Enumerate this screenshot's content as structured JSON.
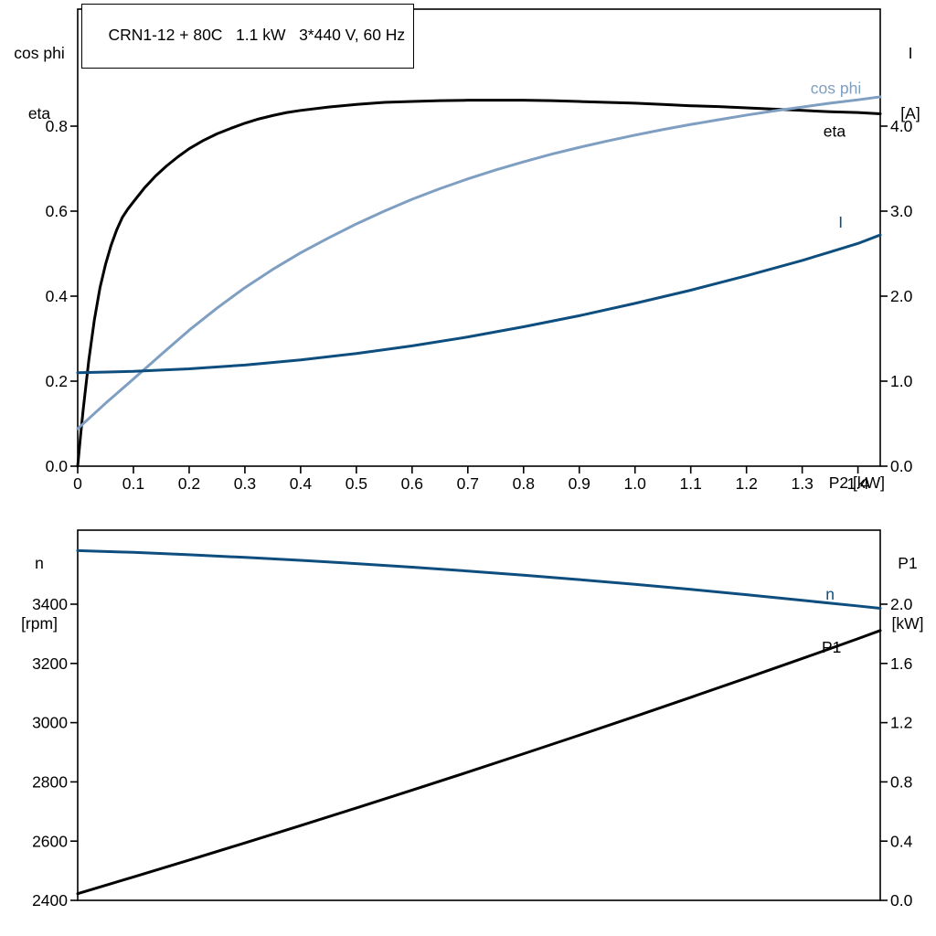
{
  "header": {
    "title": "CRN1-12 + 80C   1.1 kW   3*440 V, 60 Hz"
  },
  "colors": {
    "black": "#000000",
    "dark_blue": "#0e4e7e",
    "light_blue": "#7f9fc2",
    "frame": "#000000",
    "background": "#ffffff"
  },
  "axis_labels": {
    "top_left_line1": "cos phi",
    "top_left_line2": "eta",
    "top_right_line1": "I",
    "top_right_line2": "[A]",
    "bottom_left_line1": "n",
    "bottom_left_line2": "[rpm]",
    "bottom_right_line1": "P1",
    "bottom_right_line2": "[kW]"
  },
  "chart_data": [
    {
      "type": "line",
      "title": "CRN1-12 + 80C   1.1 kW   3*440 V, 60 Hz",
      "xlabel": "P2 [kW]",
      "xlim": [
        0,
        1.44
      ],
      "x_ticks": [
        0,
        0.1,
        0.2,
        0.3,
        0.4,
        0.5,
        0.6,
        0.7,
        0.8,
        0.9,
        1.0,
        1.1,
        1.2,
        1.3,
        1.4
      ],
      "x_tick_labels": [
        "0",
        "0.1",
        "0.2",
        "0.3",
        "0.4",
        "0.5",
        "0.6",
        "0.7",
        "0.8",
        "0.9",
        "1.0",
        "1.1",
        "1.2",
        "1.3",
        "1.4"
      ],
      "left_axis": {
        "name": "cos phi / eta",
        "lim": [
          0,
          1.0753
        ],
        "ticks": [
          0,
          0.2,
          0.4,
          0.6,
          0.8
        ],
        "tick_labels": [
          "0.0",
          "0.2",
          "0.4",
          "0.6",
          "0.8"
        ]
      },
      "right_axis": {
        "name": "I [A]",
        "lim": [
          0,
          5.3763
        ],
        "ticks": [
          0,
          1,
          2,
          3,
          4
        ],
        "tick_labels": [
          "0.0",
          "1.0",
          "2.0",
          "3.0",
          "4.0"
        ]
      },
      "series": [
        {
          "name": "eta",
          "axis": "left",
          "color": "black",
          "points": [
            [
              0,
              0
            ],
            [
              0.005,
              0.07
            ],
            [
              0.01,
              0.135
            ],
            [
              0.02,
              0.25
            ],
            [
              0.03,
              0.345
            ],
            [
              0.04,
              0.42
            ],
            [
              0.05,
              0.475
            ],
            [
              0.06,
              0.52
            ],
            [
              0.07,
              0.556
            ],
            [
              0.08,
              0.585
            ],
            [
              0.09,
              0.605
            ],
            [
              0.1,
              0.622
            ],
            [
              0.12,
              0.655
            ],
            [
              0.14,
              0.683
            ],
            [
              0.16,
              0.707
            ],
            [
              0.18,
              0.728
            ],
            [
              0.2,
              0.747
            ],
            [
              0.225,
              0.766
            ],
            [
              0.25,
              0.782
            ],
            [
              0.275,
              0.795
            ],
            [
              0.3,
              0.807
            ],
            [
              0.325,
              0.817
            ],
            [
              0.35,
              0.825
            ],
            [
              0.375,
              0.832
            ],
            [
              0.4,
              0.837
            ],
            [
              0.45,
              0.845
            ],
            [
              0.5,
              0.851
            ],
            [
              0.55,
              0.856
            ],
            [
              0.6,
              0.858
            ],
            [
              0.65,
              0.86
            ],
            [
              0.7,
              0.861
            ],
            [
              0.75,
              0.861
            ],
            [
              0.8,
              0.861
            ],
            [
              0.85,
              0.86
            ],
            [
              0.9,
              0.858
            ],
            [
              0.95,
              0.856
            ],
            [
              1,
              0.854
            ],
            [
              1.05,
              0.851
            ],
            [
              1.1,
              0.848
            ],
            [
              1.15,
              0.846
            ],
            [
              1.2,
              0.843
            ],
            [
              1.25,
              0.84
            ],
            [
              1.3,
              0.837
            ],
            [
              1.35,
              0.834
            ],
            [
              1.4,
              0.832
            ],
            [
              1.44,
              0.829
            ]
          ]
        },
        {
          "name": "cos phi",
          "axis": "left",
          "color": "light_blue",
          "points": [
            [
              0,
              0.088
            ],
            [
              0.05,
              0.148
            ],
            [
              0.1,
              0.205
            ],
            [
              0.15,
              0.263
            ],
            [
              0.2,
              0.32
            ],
            [
              0.25,
              0.372
            ],
            [
              0.3,
              0.42
            ],
            [
              0.35,
              0.463
            ],
            [
              0.4,
              0.502
            ],
            [
              0.45,
              0.537
            ],
            [
              0.5,
              0.57
            ],
            [
              0.55,
              0.6
            ],
            [
              0.6,
              0.628
            ],
            [
              0.65,
              0.653
            ],
            [
              0.7,
              0.676
            ],
            [
              0.75,
              0.697
            ],
            [
              0.8,
              0.716
            ],
            [
              0.85,
              0.734
            ],
            [
              0.9,
              0.75
            ],
            [
              0.95,
              0.765
            ],
            [
              1,
              0.779
            ],
            [
              1.05,
              0.792
            ],
            [
              1.1,
              0.804
            ],
            [
              1.15,
              0.815
            ],
            [
              1.2,
              0.826
            ],
            [
              1.25,
              0.836
            ],
            [
              1.3,
              0.845
            ],
            [
              1.35,
              0.854
            ],
            [
              1.4,
              0.862
            ],
            [
              1.44,
              0.869
            ]
          ]
        },
        {
          "name": "I",
          "axis": "right",
          "color": "dark_blue",
          "points": [
            [
              0,
              1.1
            ],
            [
              0.1,
              1.115
            ],
            [
              0.2,
              1.145
            ],
            [
              0.3,
              1.19
            ],
            [
              0.4,
              1.25
            ],
            [
              0.5,
              1.325
            ],
            [
              0.6,
              1.415
            ],
            [
              0.7,
              1.52
            ],
            [
              0.8,
              1.64
            ],
            [
              0.9,
              1.77
            ],
            [
              1,
              1.915
            ],
            [
              1.1,
              2.07
            ],
            [
              1.2,
              2.24
            ],
            [
              1.3,
              2.42
            ],
            [
              1.35,
              2.52
            ],
            [
              1.4,
              2.62
            ],
            [
              1.44,
              2.72
            ]
          ]
        }
      ],
      "curve_labels": [
        {
          "text": "cos phi",
          "axis": "left",
          "x": 1.315,
          "y": 0.89,
          "color": "light_blue"
        },
        {
          "text": "eta",
          "axis": "left",
          "x": 1.338,
          "y": 0.789,
          "color": "black"
        },
        {
          "text": "I",
          "axis": "right",
          "x": 1.365,
          "y": 2.87,
          "color": "dark_blue"
        }
      ]
    },
    {
      "type": "line",
      "title": "",
      "xlabel": "",
      "xlim": [
        0,
        1.44
      ],
      "x_ticks": [],
      "x_tick_labels": [],
      "left_axis": {
        "name": "n [rpm]",
        "lim": [
          2400,
          3650
        ],
        "ticks": [
          2400,
          2600,
          2800,
          3000,
          3200,
          3400
        ],
        "tick_labels": [
          "2400",
          "2600",
          "2800",
          "3000",
          "3200",
          "3400"
        ]
      },
      "right_axis": {
        "name": "P1 [kW]",
        "lim": [
          0,
          2.5
        ],
        "ticks": [
          0,
          0.4,
          0.8,
          1.2,
          1.6,
          2.0
        ],
        "tick_labels": [
          "0.0",
          "0.4",
          "0.8",
          "1.2",
          "1.6",
          "2.0"
        ]
      },
      "series": [
        {
          "name": "n",
          "axis": "left",
          "color": "dark_blue",
          "points": [
            [
              0,
              3581
            ],
            [
              0.1,
              3575
            ],
            [
              0.2,
              3567
            ],
            [
              0.3,
              3558
            ],
            [
              0.4,
              3548
            ],
            [
              0.5,
              3537
            ],
            [
              0.6,
              3525
            ],
            [
              0.7,
              3512
            ],
            [
              0.8,
              3498
            ],
            [
              0.9,
              3483
            ],
            [
              1,
              3467
            ],
            [
              1.1,
              3450
            ],
            [
              1.2,
              3432
            ],
            [
              1.3,
              3413
            ],
            [
              1.4,
              3394
            ],
            [
              1.44,
              3386
            ]
          ]
        },
        {
          "name": "P1",
          "axis": "right",
          "color": "black",
          "points": [
            [
              0,
              0.045
            ],
            [
              0.1,
              0.158
            ],
            [
              0.2,
              0.272
            ],
            [
              0.3,
              0.388
            ],
            [
              0.4,
              0.505
            ],
            [
              0.5,
              0.624
            ],
            [
              0.6,
              0.744
            ],
            [
              0.7,
              0.866
            ],
            [
              0.8,
              0.99
            ],
            [
              0.9,
              1.115
            ],
            [
              1,
              1.242
            ],
            [
              1.1,
              1.371
            ],
            [
              1.2,
              1.501
            ],
            [
              1.3,
              1.633
            ],
            [
              1.4,
              1.767
            ],
            [
              1.44,
              1.822
            ]
          ]
        }
      ],
      "curve_labels": [
        {
          "text": "n",
          "axis": "left",
          "x": 1.342,
          "y": 3434,
          "color": "dark_blue"
        },
        {
          "text": "P1",
          "axis": "right",
          "x": 1.335,
          "y": 1.71,
          "color": "black"
        }
      ]
    }
  ]
}
